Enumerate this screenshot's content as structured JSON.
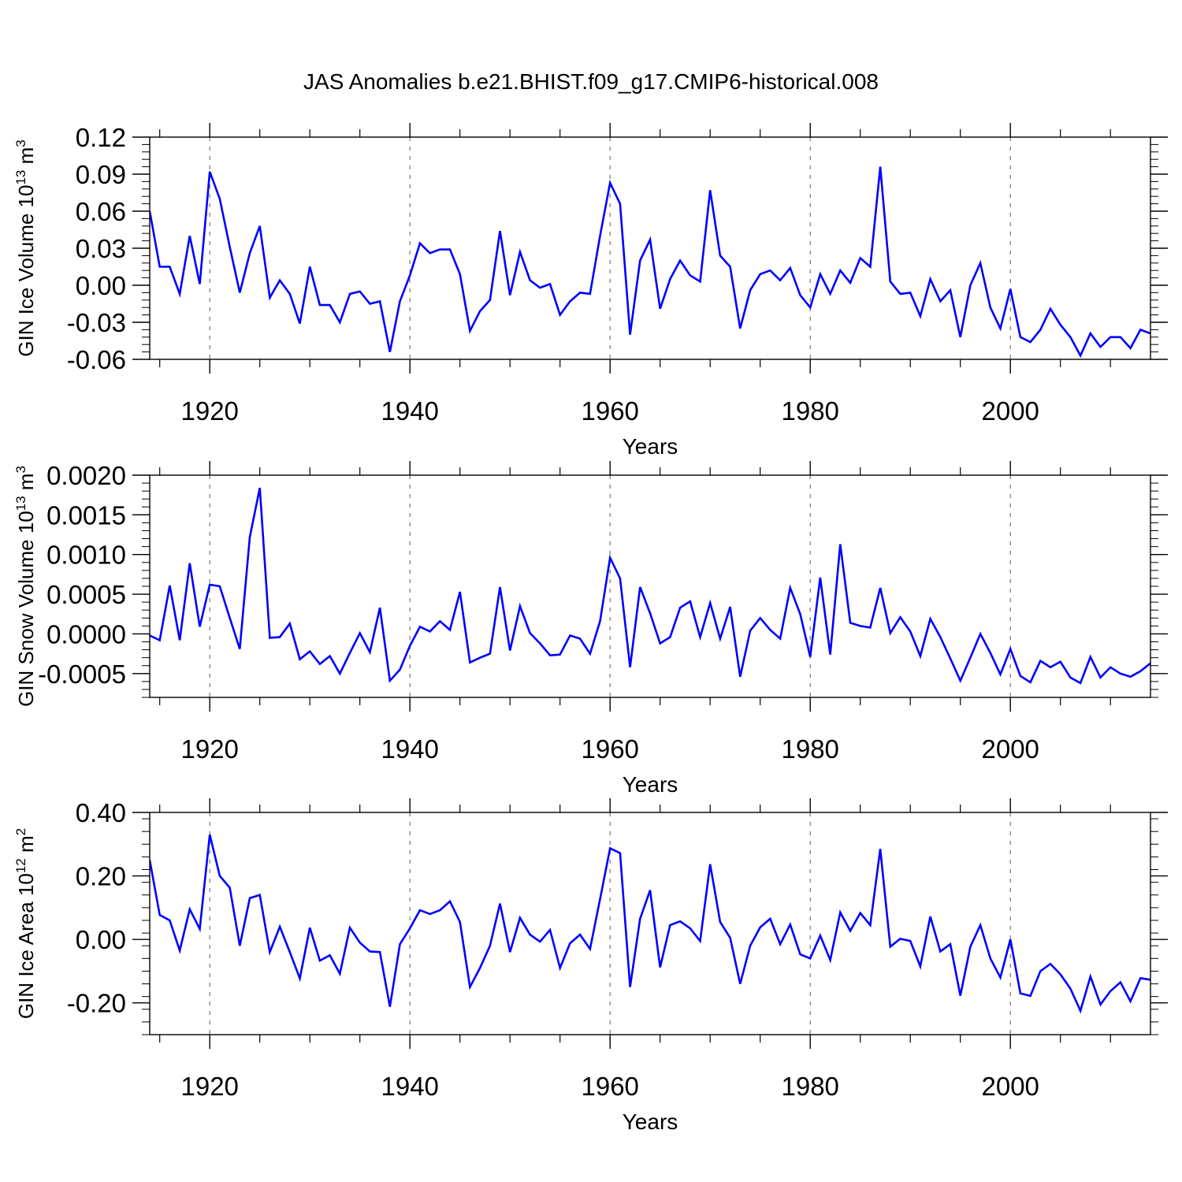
{
  "title": "JAS Anomalies b.e21.BHIST.f09_g17.CMIP6-historical.008",
  "line_color": "#0000ff",
  "chart_data": [
    {
      "type": "line",
      "ylabel": "GIN Ice Volume 10",
      "ylabel_sup": "13",
      "ylabel_unit": "m",
      "ylabel_unit_sup": "3",
      "xlabel": "Years",
      "xlim": [
        1914,
        2014
      ],
      "ylim": [
        -0.06,
        0.12
      ],
      "yticks": [
        "0.12",
        "0.09",
        "0.06",
        "0.03",
        "0.00",
        "-0.03",
        "-0.06"
      ],
      "yticks_values": [
        0.12,
        0.09,
        0.06,
        0.03,
        0.0,
        -0.03,
        -0.06
      ],
      "xticks": [
        "1920",
        "1940",
        "1960",
        "1980",
        "2000"
      ],
      "xticks_values": [
        1920,
        1940,
        1960,
        1980,
        2000
      ],
      "x_start": 1914,
      "values": [
        0.06,
        0.015,
        0.015,
        -0.007,
        0.04,
        0.001,
        0.092,
        0.07,
        0.031,
        -0.006,
        0.026,
        0.048,
        -0.01,
        0.004,
        -0.007,
        -0.031,
        0.015,
        -0.016,
        -0.016,
        -0.03,
        -0.007,
        -0.005,
        -0.015,
        -0.013,
        -0.054,
        -0.013,
        0.008,
        0.034,
        0.026,
        0.029,
        0.029,
        0.009,
        -0.037,
        -0.021,
        -0.012,
        0.044,
        -0.008,
        0.027,
        0.004,
        -0.002,
        0.001,
        -0.024,
        -0.013,
        -0.006,
        -0.007,
        0.04,
        0.083,
        0.066,
        -0.04,
        0.02,
        0.037,
        -0.019,
        0.005,
        0.02,
        0.008,
        0.003,
        0.077,
        0.024,
        0.015,
        -0.035,
        -0.004,
        0.009,
        0.012,
        0.004,
        0.014,
        -0.008,
        -0.018,
        0.009,
        -0.007,
        0.012,
        0.002,
        0.022,
        0.015,
        0.096,
        0.003,
        -0.007,
        -0.006,
        -0.025,
        0.005,
        -0.013,
        -0.004,
        -0.042,
        0.0,
        0.018,
        -0.018,
        -0.035,
        -0.003,
        -0.042,
        -0.046,
        -0.036,
        -0.019,
        -0.032,
        -0.042,
        -0.057,
        -0.039,
        -0.05,
        -0.042,
        -0.042,
        -0.051,
        -0.036,
        -0.039
      ]
    },
    {
      "type": "line",
      "ylabel": "GIN Snow Volume 10",
      "ylabel_sup": "13",
      "ylabel_unit": "m",
      "ylabel_unit_sup": "3",
      "xlabel": "Years",
      "xlim": [
        1914,
        2014
      ],
      "ylim": [
        -0.0008,
        0.002
      ],
      "yticks": [
        "0.0020",
        "0.0015",
        "0.0010",
        "0.0005",
        "0.0000",
        "-0.0005"
      ],
      "yticks_values": [
        0.002,
        0.0015,
        0.001,
        0.0005,
        0.0,
        -0.0005
      ],
      "xticks": [
        "1920",
        "1940",
        "1960",
        "1980",
        "2000"
      ],
      "xticks_values": [
        1920,
        1940,
        1960,
        1980,
        2000
      ],
      "x_start": 1914,
      "values": [
        -2e-05,
        -8e-05,
        0.00061,
        -8e-05,
        0.00089,
        9e-05,
        0.00062,
        0.0006,
        0.0002,
        -0.00019,
        0.00122,
        0.00184,
        -5e-05,
        -4e-05,
        0.00013,
        -0.00032,
        -0.00022,
        -0.00038,
        -0.00028,
        -0.0005,
        -0.00024,
        1e-05,
        -0.00023,
        0.00033,
        -0.00059,
        -0.00045,
        -0.00015,
        9e-05,
        3e-05,
        0.00016,
        5e-05,
        0.00053,
        -0.00036,
        -0.0003,
        -0.00025,
        0.00059,
        -0.00021,
        0.00035,
        1e-05,
        -0.00012,
        -0.00027,
        -0.00026,
        -2e-05,
        -6e-05,
        -0.00025,
        0.00016,
        0.00096,
        0.0007,
        -0.00042,
        0.00059,
        0.00026,
        -0.00012,
        -4e-05,
        0.00033,
        0.00041,
        -4e-05,
        0.00039,
        -6e-05,
        0.00034,
        -0.00054,
        4e-05,
        0.0002,
        5e-05,
        -6e-05,
        0.00058,
        0.00025,
        -0.00029,
        0.00071,
        -0.00026,
        0.00113,
        0.00014,
        0.0001,
        8e-05,
        0.00058,
        1e-05,
        0.00021,
        3e-05,
        -0.00028,
        0.00019,
        -4e-05,
        -0.00031,
        -0.00059,
        -0.0003,
        0.0,
        -0.00024,
        -0.00051,
        -0.00019,
        -0.00053,
        -0.00061,
        -0.00034,
        -0.00042,
        -0.00035,
        -0.00055,
        -0.00062,
        -0.00029,
        -0.00055,
        -0.00042,
        -0.0005,
        -0.00054,
        -0.00047,
        -0.00037
      ]
    },
    {
      "type": "line",
      "ylabel": "GIN Ice Area 10",
      "ylabel_sup": "12",
      "ylabel_unit": "m",
      "ylabel_unit_sup": "2",
      "xlabel": "Years",
      "xlim": [
        1914,
        2014
      ],
      "ylim": [
        -0.3,
        0.4
      ],
      "yticks": [
        "0.40",
        "0.20",
        "0.00",
        "-0.20"
      ],
      "yticks_values": [
        0.4,
        0.2,
        0.0,
        -0.2
      ],
      "xticks": [
        "1920",
        "1940",
        "1960",
        "1980",
        "2000"
      ],
      "xticks_values": [
        1920,
        1940,
        1960,
        1980,
        2000
      ],
      "x_start": 1914,
      "values": [
        0.25,
        0.077,
        0.06,
        -0.035,
        0.095,
        0.033,
        0.33,
        0.2,
        0.163,
        -0.02,
        0.13,
        0.14,
        -0.04,
        0.04,
        -0.04,
        -0.123,
        0.037,
        -0.067,
        -0.05,
        -0.108,
        0.037,
        -0.01,
        -0.038,
        -0.04,
        -0.212,
        -0.015,
        0.035,
        0.092,
        0.08,
        0.092,
        0.12,
        0.055,
        -0.15,
        -0.09,
        -0.02,
        0.113,
        -0.04,
        0.068,
        0.015,
        -0.007,
        0.03,
        -0.09,
        -0.012,
        0.015,
        -0.03,
        0.127,
        0.287,
        0.272,
        -0.15,
        0.065,
        0.155,
        -0.088,
        0.045,
        0.057,
        0.035,
        -0.005,
        0.237,
        0.055,
        0.005,
        -0.14,
        -0.02,
        0.038,
        0.065,
        -0.015,
        0.047,
        -0.047,
        -0.06,
        0.012,
        -0.065,
        0.085,
        0.027,
        0.083,
        0.045,
        0.285,
        -0.023,
        0.002,
        -0.005,
        -0.085,
        0.072,
        -0.038,
        -0.015,
        -0.177,
        -0.023,
        0.045,
        -0.06,
        -0.12,
        0.0,
        -0.17,
        -0.178,
        -0.1,
        -0.077,
        -0.11,
        -0.155,
        -0.225,
        -0.117,
        -0.205,
        -0.163,
        -0.135,
        -0.195,
        -0.122,
        -0.127
      ]
    }
  ]
}
